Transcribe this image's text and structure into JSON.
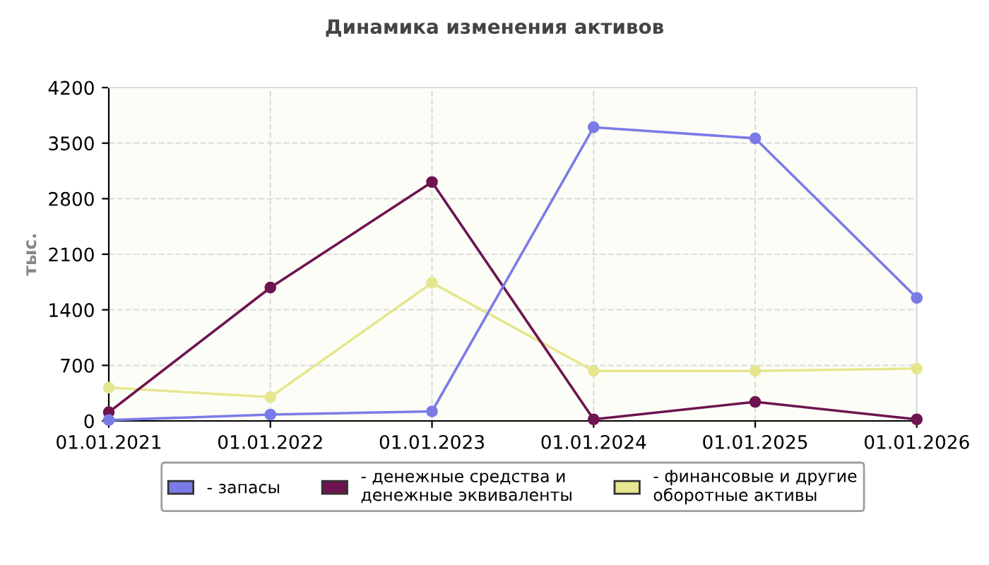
{
  "chart_data": {
    "type": "line",
    "title": "Динамика изменения активов",
    "ylabel": "тыс.",
    "categories": [
      "01.01.2021",
      "01.01.2022",
      "01.01.2023",
      "01.01.2024",
      "01.01.2025",
      "01.01.2026"
    ],
    "series": [
      {
        "name": "- запасы",
        "color": "#7b7be8",
        "values": [
          10,
          80,
          120,
          3700,
          3560,
          1550
        ]
      },
      {
        "name": "- денежные средства и\nденежные эквиваленты",
        "color": "#6e1450",
        "values": [
          110,
          1680,
          3010,
          20,
          240,
          20
        ]
      },
      {
        "name": "- финансовые и другие\nоборотные активы",
        "color": "#e6e690",
        "values": [
          420,
          300,
          1740,
          630,
          630,
          660
        ]
      }
    ],
    "ylim": [
      0,
      4200
    ],
    "yticks": [
      0,
      700,
      1400,
      2100,
      2800,
      3500,
      4200
    ],
    "grid": true,
    "legend": "bottom",
    "marker": "circle"
  }
}
